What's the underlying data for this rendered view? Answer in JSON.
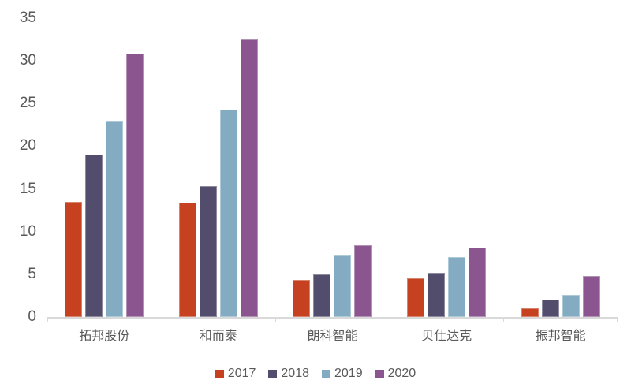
{
  "chart_data": {
    "type": "bar",
    "title": "",
    "xlabel": "",
    "ylabel": "",
    "categories": [
      "拓邦股份",
      "和而泰",
      "朗科智能",
      "贝仕达克",
      "振邦智能"
    ],
    "series": [
      {
        "name": "2017",
        "color": "#C5411F",
        "values": [
          13.5,
          13.4,
          4.3,
          4.5,
          1.0
        ]
      },
      {
        "name": "2018",
        "color": "#524C6D",
        "values": [
          19.0,
          15.3,
          5.0,
          5.2,
          2.0
        ]
      },
      {
        "name": "2019",
        "color": "#83ACC3",
        "values": [
          22.9,
          24.3,
          7.2,
          7.0,
          2.6
        ]
      },
      {
        "name": "2020",
        "color": "#8B5590",
        "values": [
          30.8,
          32.5,
          8.4,
          8.1,
          4.8
        ]
      }
    ],
    "ylim": [
      0,
      35
    ],
    "yticks": [
      0,
      5,
      10,
      15,
      20,
      25,
      30,
      35
    ],
    "grid": false,
    "legend_position": "bottom",
    "legend_labels": [
      "2017",
      "2018",
      "2019",
      "2020"
    ]
  },
  "style": {
    "background": "#FFFFFF",
    "text_color": "#595959",
    "axis_color": "#D9D9D9"
  }
}
